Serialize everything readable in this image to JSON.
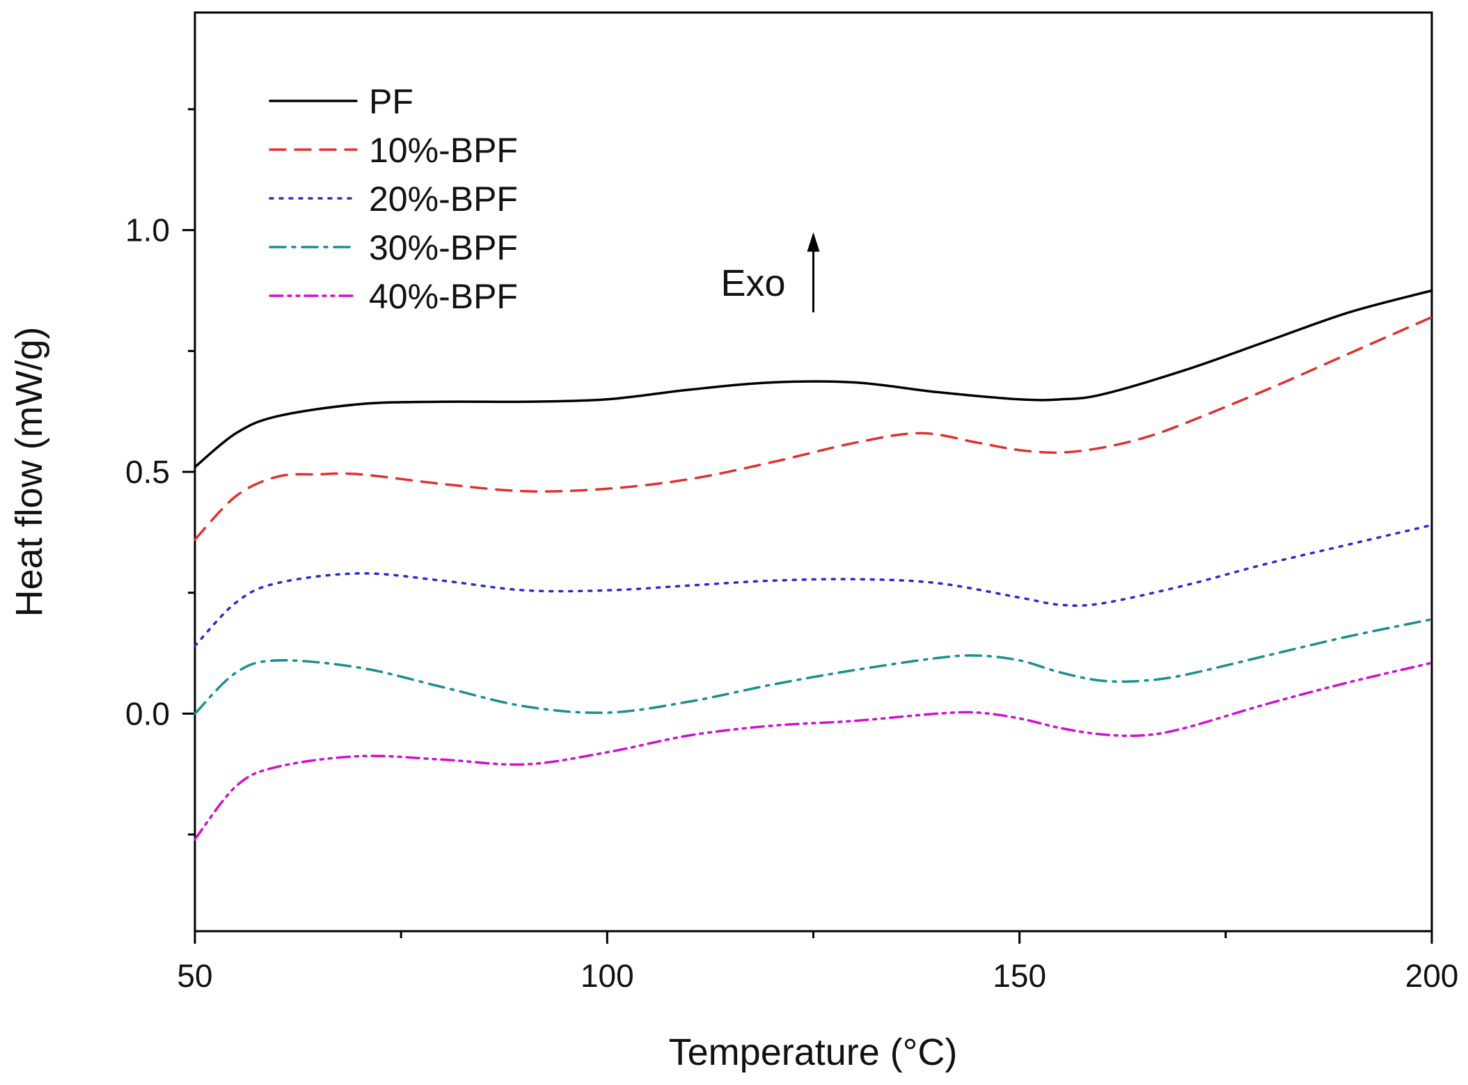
{
  "chart_data": {
    "type": "line",
    "title": "",
    "xlabel": "Temperature (°C)",
    "ylabel": "Heat flow (mW/g)",
    "xlim": [
      50,
      200
    ],
    "ylim": [
      -0.45,
      1.45
    ],
    "x_ticks": [
      50,
      100,
      150,
      200
    ],
    "x_tick_labels": [
      "50",
      "100",
      "150",
      "200"
    ],
    "x_minor_ticks": [
      75,
      125,
      175
    ],
    "y_ticks": [
      0.0,
      0.5,
      1.0
    ],
    "y_tick_labels": [
      "0.0",
      "0.5",
      "1.0"
    ],
    "y_minor_ticks": [
      -0.25,
      0.25,
      0.75,
      1.25
    ],
    "grid": false,
    "legend_position": "top-left",
    "annotation": {
      "text": "Exo",
      "arrow_x": 125,
      "arrow_y_from": 0.83,
      "arrow_y_to": 0.99
    },
    "series": [
      {
        "name": "PF",
        "color": "#000000",
        "dash": "solid",
        "x": [
          50,
          55,
          60,
          70,
          80,
          90,
          100,
          110,
          120,
          130,
          140,
          150,
          155,
          160,
          170,
          180,
          190,
          200
        ],
        "y": [
          0.51,
          0.58,
          0.615,
          0.64,
          0.645,
          0.645,
          0.65,
          0.67,
          0.685,
          0.685,
          0.665,
          0.65,
          0.65,
          0.66,
          0.71,
          0.77,
          0.83,
          0.875
        ]
      },
      {
        "name": "10%-BPF",
        "color": "#e03030",
        "dash": "dashed",
        "x": [
          50,
          55,
          60,
          65,
          70,
          80,
          90,
          100,
          110,
          120,
          130,
          138,
          145,
          150,
          155,
          160,
          165,
          170,
          180,
          190,
          200
        ],
        "y": [
          0.36,
          0.45,
          0.49,
          0.495,
          0.495,
          0.475,
          0.46,
          0.465,
          0.485,
          0.52,
          0.56,
          0.58,
          0.56,
          0.545,
          0.54,
          0.55,
          0.57,
          0.6,
          0.67,
          0.745,
          0.82
        ]
      },
      {
        "name": "20%-BPF",
        "color": "#2a2ad0",
        "dash": "dotted",
        "x": [
          50,
          55,
          60,
          70,
          80,
          90,
          100,
          110,
          120,
          130,
          140,
          150,
          155,
          160,
          170,
          180,
          190,
          200
        ],
        "y": [
          0.14,
          0.23,
          0.27,
          0.29,
          0.275,
          0.255,
          0.255,
          0.265,
          0.275,
          0.278,
          0.27,
          0.24,
          0.225,
          0.228,
          0.265,
          0.31,
          0.35,
          0.39
        ]
      },
      {
        "name": "30%-BPF",
        "color": "#1a8f8f",
        "dash": "dashdot",
        "x": [
          50,
          55,
          60,
          70,
          80,
          90,
          100,
          110,
          120,
          130,
          140,
          145,
          150,
          155,
          160,
          165,
          170,
          180,
          190,
          200
        ],
        "y": [
          0.0,
          0.085,
          0.11,
          0.095,
          0.055,
          0.015,
          0.002,
          0.025,
          0.06,
          0.09,
          0.115,
          0.12,
          0.11,
          0.085,
          0.068,
          0.068,
          0.08,
          0.12,
          0.16,
          0.195
        ]
      },
      {
        "name": "40%-BPF",
        "color": "#d010d0",
        "dash": "dashdotdot",
        "x": [
          50,
          55,
          60,
          70,
          80,
          90,
          100,
          110,
          120,
          130,
          140,
          145,
          150,
          155,
          160,
          165,
          170,
          180,
          190,
          200
        ],
        "y": [
          -0.26,
          -0.15,
          -0.11,
          -0.088,
          -0.095,
          -0.105,
          -0.08,
          -0.045,
          -0.025,
          -0.015,
          0.0,
          0.002,
          -0.01,
          -0.03,
          -0.043,
          -0.045,
          -0.03,
          0.02,
          0.065,
          0.105
        ]
      }
    ]
  }
}
